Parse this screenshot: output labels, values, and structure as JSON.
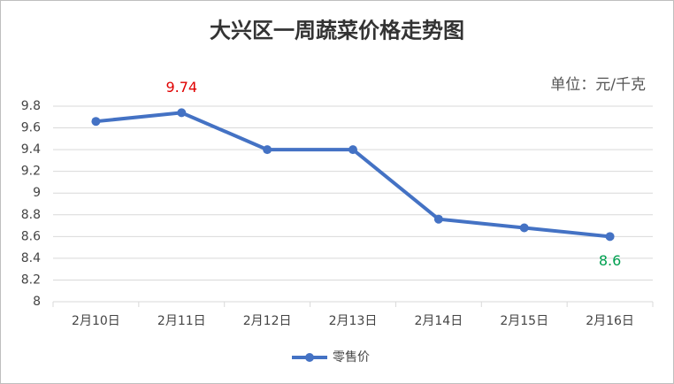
{
  "chart_data": {
    "type": "line",
    "title": "大兴区一周蔬菜价格走势图",
    "unit_note": "单位：元/千克",
    "categories": [
      "2月10日",
      "2月11日",
      "2月12日",
      "2月13日",
      "2月14日",
      "2月15日",
      "2月16日"
    ],
    "series": [
      {
        "name": "零售价",
        "color": "#4472c4",
        "values": [
          9.66,
          9.74,
          9.4,
          9.4,
          8.76,
          8.68,
          8.6
        ],
        "value_label_colors": [
          null,
          "#e00000",
          null,
          null,
          null,
          null,
          "#00a050"
        ]
      }
    ],
    "ylim": [
      8,
      9.8
    ],
    "yticks": [
      8,
      8.2,
      8.4,
      8.6,
      8.8,
      9,
      9.2,
      9.4,
      9.6,
      9.8
    ],
    "grid": true,
    "legend": "bottom"
  }
}
